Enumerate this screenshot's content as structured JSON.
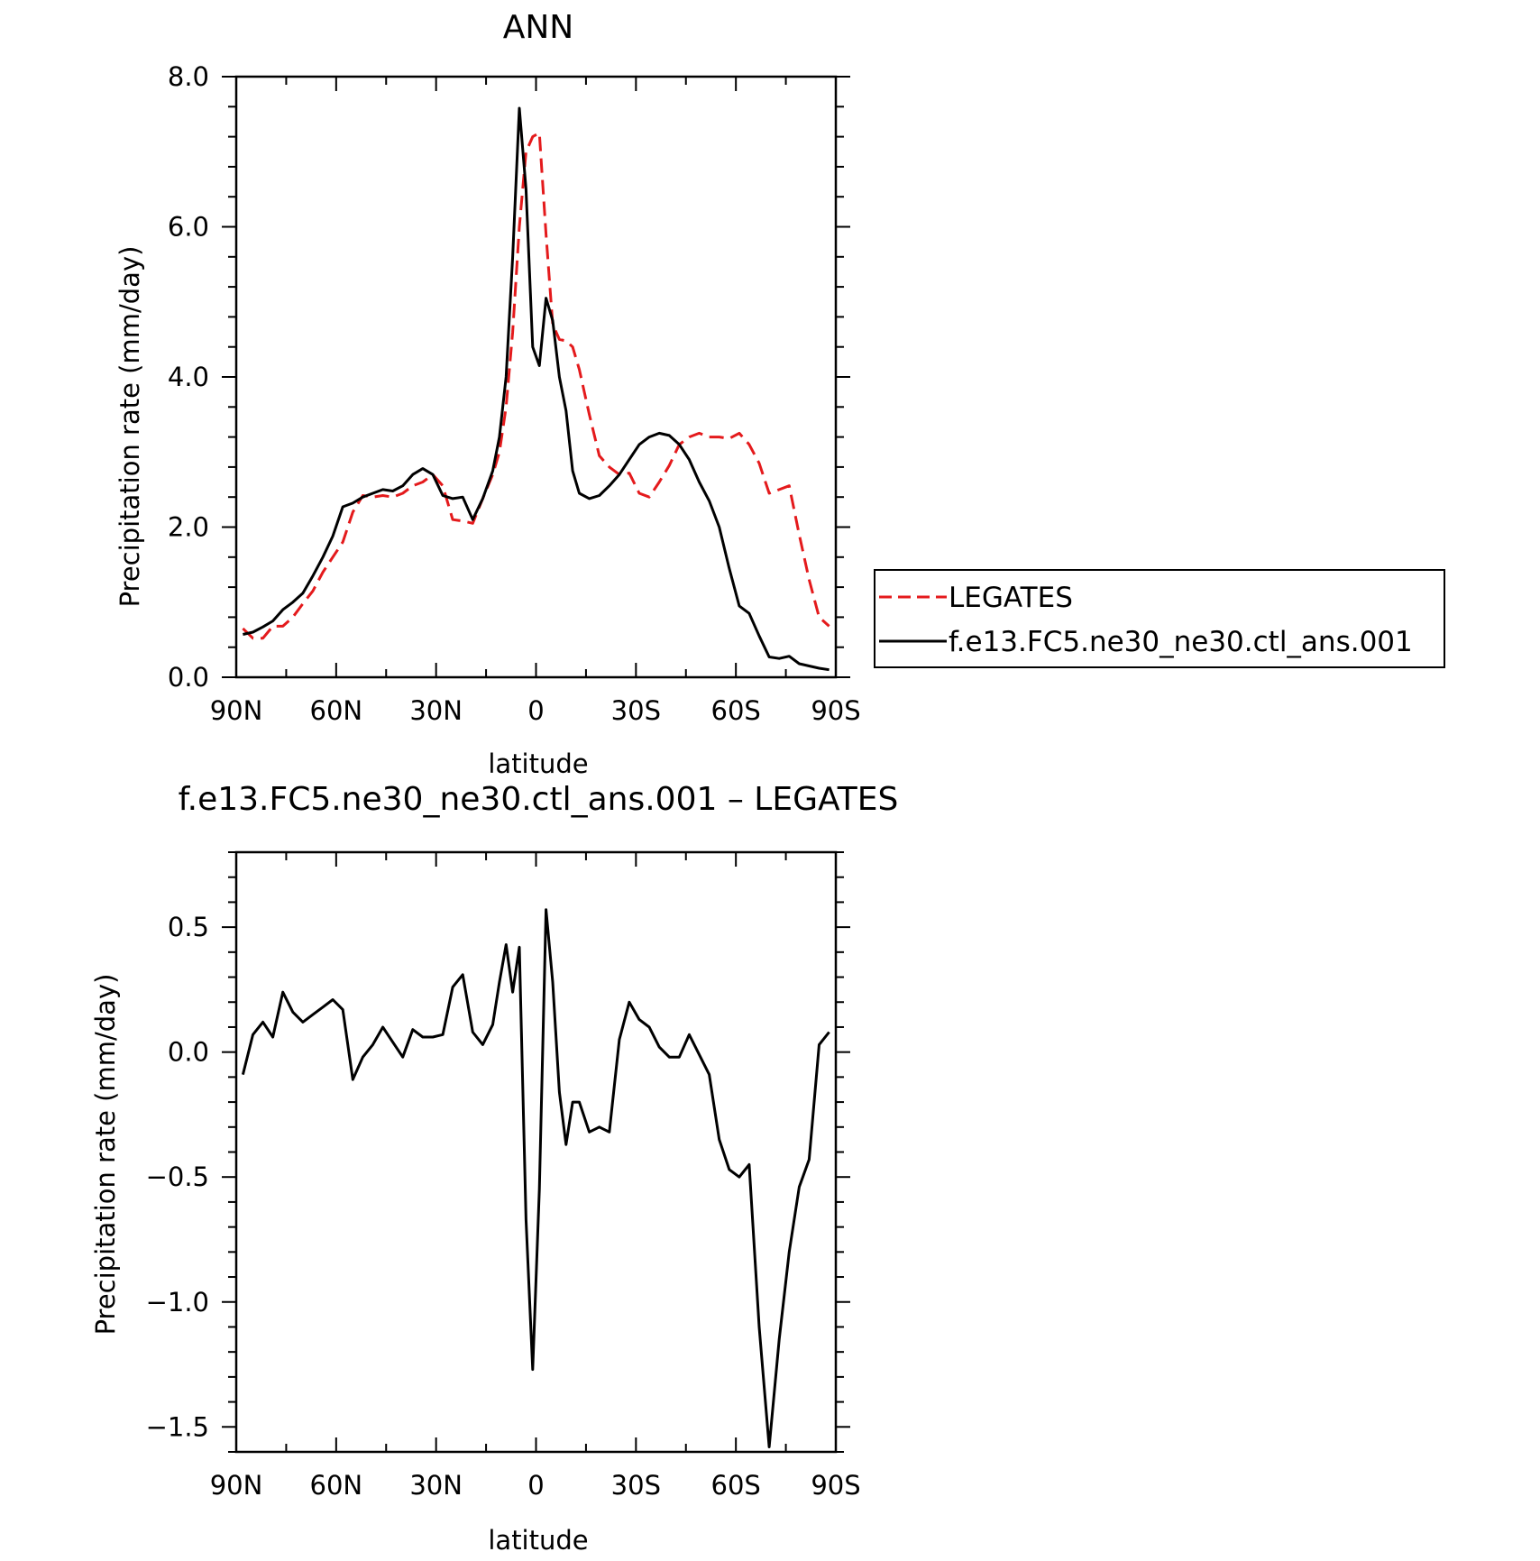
{
  "chart_data": [
    {
      "type": "line",
      "title": "ANN",
      "xlabel": "latitude",
      "ylabel": "Precipitation rate (mm/day)",
      "xlim": [
        90,
        -90
      ],
      "ylim": [
        0,
        8
      ],
      "xticks": [
        {
          "value": 90,
          "label": "90N"
        },
        {
          "value": 60,
          "label": "60N"
        },
        {
          "value": 30,
          "label": "30N"
        },
        {
          "value": 0,
          "label": "0"
        },
        {
          "value": -30,
          "label": "30S"
        },
        {
          "value": -60,
          "label": "60S"
        },
        {
          "value": -90,
          "label": "90S"
        }
      ],
      "yticks": [
        {
          "value": 0,
          "label": "0.0"
        },
        {
          "value": 2,
          "label": "2.0"
        },
        {
          "value": 4,
          "label": "4.0"
        },
        {
          "value": 6,
          "label": "6.0"
        },
        {
          "value": 8,
          "label": "8.0"
        }
      ],
      "legend": {
        "position": "right"
      },
      "series": [
        {
          "name": "LEGATES",
          "color": "#e41a1c",
          "dash": "dashed",
          "x": [
            88,
            85,
            82,
            79,
            76,
            73,
            70,
            67,
            64,
            61,
            58,
            55,
            52,
            49,
            46,
            43,
            40,
            37,
            34,
            31,
            28,
            25,
            22,
            19,
            16,
            13,
            11,
            9,
            7,
            5,
            3,
            1,
            -1,
            -3,
            -5,
            -7,
            -9,
            -11,
            -13,
            -16,
            -19,
            -22,
            -25,
            -28,
            -31,
            -34,
            -37,
            -40,
            -43,
            -46,
            -49,
            -52,
            -55,
            -58,
            -61,
            -64,
            -67,
            -70,
            -73,
            -76,
            -79,
            -82,
            -85,
            -88
          ],
          "values": [
            0.65,
            0.52,
            0.52,
            0.68,
            0.68,
            0.8,
            0.98,
            1.15,
            1.4,
            1.6,
            1.8,
            2.2,
            2.42,
            2.4,
            2.42,
            2.4,
            2.45,
            2.55,
            2.6,
            2.7,
            2.55,
            2.1,
            2.08,
            2.05,
            2.38,
            2.7,
            3.0,
            3.6,
            4.6,
            6.0,
            7.0,
            7.2,
            7.25,
            5.9,
            4.7,
            4.5,
            4.48,
            4.4,
            4.1,
            3.5,
            2.95,
            2.8,
            2.7,
            2.72,
            2.45,
            2.4,
            2.6,
            2.82,
            3.1,
            3.2,
            3.25,
            3.2,
            3.2,
            3.18,
            3.25,
            3.1,
            2.85,
            2.45,
            2.5,
            2.55,
            1.9,
            1.3,
            0.8,
            0.68
          ]
        },
        {
          "name": "f.e13.FC5.ne30_ne30.ctl_ans.001",
          "color": "#000000",
          "dash": "solid",
          "x": [
            88,
            85,
            82,
            79,
            76,
            73,
            70,
            67,
            64,
            61,
            58,
            55,
            52,
            49,
            46,
            43,
            40,
            37,
            34,
            31,
            28,
            25,
            22,
            19,
            16,
            13,
            11,
            9,
            7,
            5,
            3,
            1,
            -1,
            -3,
            -5,
            -7,
            -9,
            -11,
            -13,
            -16,
            -19,
            -22,
            -25,
            -28,
            -31,
            -34,
            -37,
            -40,
            -43,
            -46,
            -49,
            -52,
            -55,
            -58,
            -61,
            -64,
            -67,
            -70,
            -73,
            -76,
            -79,
            -82,
            -85,
            -88
          ],
          "values": [
            0.57,
            0.6,
            0.67,
            0.75,
            0.9,
            1.0,
            1.12,
            1.35,
            1.6,
            1.88,
            2.27,
            2.32,
            2.4,
            2.45,
            2.5,
            2.48,
            2.55,
            2.7,
            2.78,
            2.7,
            2.42,
            2.38,
            2.4,
            2.1,
            2.38,
            2.75,
            3.2,
            4.0,
            5.6,
            7.58,
            6.5,
            4.4,
            4.15,
            5.05,
            4.75,
            4.0,
            3.55,
            2.75,
            2.45,
            2.38,
            2.42,
            2.55,
            2.7,
            2.9,
            3.1,
            3.2,
            3.25,
            3.22,
            3.1,
            2.9,
            2.6,
            2.35,
            2.0,
            1.45,
            0.95,
            0.85,
            0.55,
            0.27,
            0.25,
            0.28,
            0.18,
            0.15,
            0.12,
            0.1
          ]
        }
      ]
    },
    {
      "type": "line",
      "title": "f.e13.FC5.ne30_ne30.ctl_ans.001 – LEGATES",
      "xlabel": "latitude",
      "ylabel": "Precipitation rate (mm/day)",
      "xlim": [
        90,
        -90
      ],
      "ylim": [
        -1.6,
        0.8
      ],
      "xticks": [
        {
          "value": 90,
          "label": "90N"
        },
        {
          "value": 60,
          "label": "60N"
        },
        {
          "value": 30,
          "label": "30N"
        },
        {
          "value": 0,
          "label": "0"
        },
        {
          "value": -30,
          "label": "30S"
        },
        {
          "value": -60,
          "label": "60S"
        },
        {
          "value": -90,
          "label": "90S"
        }
      ],
      "yticks": [
        {
          "value": -1.5,
          "label": "−1.5"
        },
        {
          "value": -1.0,
          "label": "−1.0"
        },
        {
          "value": -0.5,
          "label": "−0.5"
        },
        {
          "value": 0.0,
          "label": "0.0"
        },
        {
          "value": 0.5,
          "label": "0.5"
        }
      ],
      "series": [
        {
          "color": "#000000",
          "dash": "solid",
          "x": [
            88,
            85,
            82,
            79,
            76,
            73,
            70,
            67,
            64,
            61,
            58,
            55,
            52,
            49,
            46,
            43,
            40,
            37,
            34,
            31,
            28,
            25,
            22,
            19,
            16,
            13,
            11,
            9,
            7,
            5,
            3,
            1,
            -1,
            -3,
            -5,
            -7,
            -9,
            -11,
            -13,
            -16,
            -19,
            -22,
            -25,
            -28,
            -31,
            -34,
            -37,
            -40,
            -43,
            -46,
            -49,
            -52,
            -55,
            -58,
            -61,
            -64,
            -67,
            -70,
            -73,
            -76,
            -79,
            -82,
            -85,
            -88
          ],
          "values": [
            -0.09,
            0.07,
            0.12,
            0.06,
            0.24,
            0.16,
            0.12,
            0.15,
            0.18,
            0.21,
            0.17,
            -0.11,
            -0.02,
            0.03,
            0.1,
            0.04,
            -0.02,
            0.09,
            0.06,
            0.06,
            0.07,
            0.26,
            0.31,
            0.08,
            0.03,
            0.11,
            0.28,
            0.43,
            0.24,
            0.42,
            -0.67,
            -1.27,
            -0.55,
            0.57,
            0.28,
            -0.16,
            -0.37,
            -0.2,
            -0.2,
            -0.32,
            -0.3,
            -0.32,
            0.05,
            0.2,
            0.13,
            0.1,
            0.02,
            -0.02,
            -0.02,
            0.07,
            -0.01,
            -0.09,
            -0.35,
            -0.47,
            -0.5,
            -0.45,
            -1.1,
            -1.58,
            -1.15,
            -0.8,
            -0.54,
            -0.43,
            0.03,
            0.08
          ]
        }
      ]
    }
  ]
}
